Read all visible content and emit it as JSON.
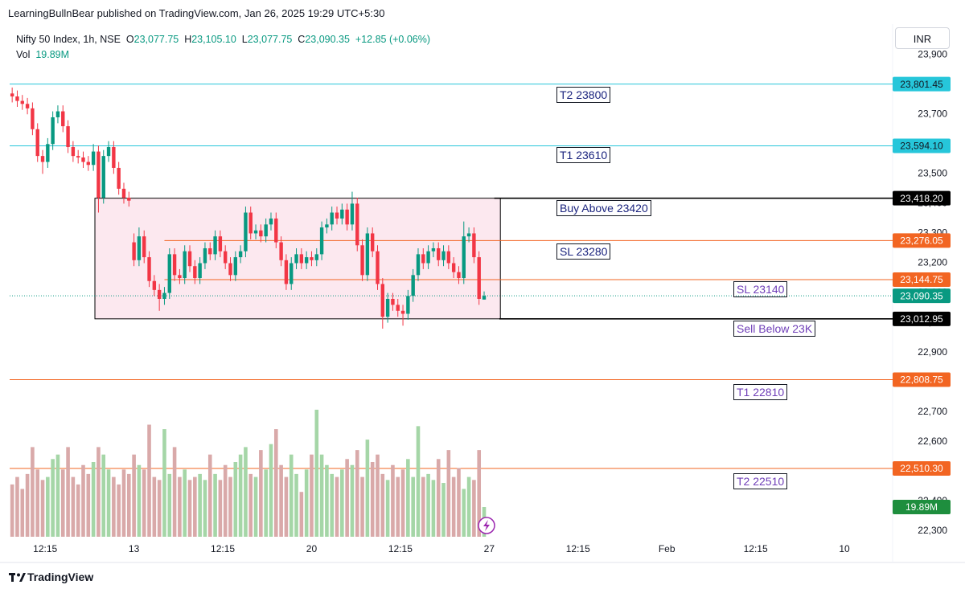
{
  "header": {
    "published": "LearningBullnBear published on TradingView.com, Jan 26, 2025 19:29 UTC+5:30"
  },
  "legend": {
    "symbol": "Nifty 50 Index, 1h, NSE",
    "o": "O",
    "open": "23,077.75",
    "h": "H",
    "high": "23,105.10",
    "l": "L",
    "low": "23,077.75",
    "c": "C",
    "close": "23,090.35",
    "change": "+12.85 (+0.06%)",
    "vol": "Vol",
    "volume": "19.89M"
  },
  "currency": "INR",
  "brand": "TradingView",
  "chart_data": {
    "type": "candlestick",
    "x": [
      0,
      1,
      2,
      3,
      4,
      5,
      6,
      7,
      8,
      9,
      10,
      11,
      12,
      13,
      14,
      15,
      16,
      17,
      18,
      19,
      20,
      21,
      22,
      23,
      24,
      25,
      26,
      27,
      28,
      29,
      30,
      31,
      32,
      33,
      34,
      35,
      36,
      37,
      38,
      39,
      40,
      41,
      42,
      43,
      44,
      45,
      46,
      47,
      48,
      49,
      50,
      51,
      52,
      53,
      54,
      55,
      56,
      57,
      58,
      59,
      60,
      61,
      62,
      63,
      64,
      65,
      66,
      67,
      68,
      69,
      70,
      71,
      72,
      73,
      74,
      75,
      76,
      77,
      78,
      79,
      80,
      81,
      82,
      83,
      84,
      85,
      86,
      87,
      88,
      89,
      90,
      91,
      92,
      93
    ],
    "open": [
      23770,
      23760,
      23745,
      23735,
      23720,
      23650,
      23560,
      23540,
      23600,
      23690,
      23710,
      23660,
      23590,
      23560,
      23555,
      23540,
      23530,
      23575,
      23420,
      23560,
      23590,
      23520,
      23450,
      23420,
      23270,
      23210,
      23290,
      23220,
      23140,
      23110,
      23080,
      23100,
      23230,
      23160,
      23150,
      23240,
      23190,
      23150,
      23200,
      23250,
      23230,
      23290,
      23240,
      23200,
      23160,
      23220,
      23240,
      23370,
      23300,
      23310,
      23290,
      23330,
      23350,
      23270,
      23210,
      23130,
      23200,
      23230,
      23200,
      23220,
      23210,
      23230,
      23320,
      23330,
      23370,
      23350,
      23380,
      23330,
      23400,
      23260,
      23160,
      23300,
      23240,
      23130,
      23020,
      23080,
      23060,
      23040,
      23030,
      23090,
      23160,
      23230,
      23200,
      23240,
      23250,
      23210,
      23240,
      23200,
      23170,
      23150,
      23290,
      23300,
      23220,
      23077.75
    ],
    "high": [
      23790,
      23780,
      23765,
      23755,
      23740,
      23670,
      23580,
      23620,
      23710,
      23730,
      23730,
      23680,
      23610,
      23580,
      23575,
      23560,
      23600,
      23595,
      23580,
      23610,
      23610,
      23540,
      23470,
      23440,
      23300,
      23320,
      23310,
      23240,
      23160,
      23130,
      23120,
      23250,
      23250,
      23180,
      23260,
      23260,
      23210,
      23220,
      23270,
      23270,
      23310,
      23310,
      23260,
      23220,
      23240,
      23260,
      23390,
      23390,
      23330,
      23330,
      23350,
      23370,
      23370,
      23290,
      23230,
      23220,
      23250,
      23250,
      23240,
      23240,
      23250,
      23340,
      23350,
      23390,
      23390,
      23400,
      23400,
      23440,
      23420,
      23280,
      23320,
      23320,
      23260,
      23150,
      23100,
      23100,
      23080,
      23060,
      23110,
      23180,
      23250,
      23250,
      23260,
      23270,
      23270,
      23260,
      23260,
      23220,
      23190,
      23340,
      23320,
      23320,
      23240,
      23105.1
    ],
    "low": [
      23740,
      23725,
      23715,
      23700,
      23630,
      23540,
      23500,
      23520,
      23580,
      23670,
      23640,
      23570,
      23540,
      23535,
      23520,
      23510,
      23510,
      23370,
      23400,
      23540,
      23500,
      23430,
      23400,
      23390,
      23190,
      23190,
      23200,
      23120,
      23090,
      23040,
      23060,
      23080,
      23140,
      23130,
      23130,
      23170,
      23130,
      23130,
      23180,
      23210,
      23210,
      23220,
      23180,
      23140,
      23140,
      23200,
      23220,
      23280,
      23280,
      23270,
      23270,
      23310,
      23250,
      23190,
      23110,
      23110,
      23180,
      23180,
      23180,
      23190,
      23190,
      23210,
      23300,
      23310,
      23330,
      23330,
      23310,
      23310,
      23240,
      23140,
      23140,
      23220,
      23110,
      22980,
      23000,
      23040,
      23020,
      22990,
      23010,
      23070,
      23140,
      23180,
      23180,
      23220,
      23190,
      23190,
      23180,
      23150,
      23130,
      23130,
      23270,
      23200,
      23060,
      23077.75
    ],
    "close": [
      23760,
      23745,
      23735,
      23720,
      23650,
      23560,
      23540,
      23600,
      23690,
      23710,
      23660,
      23590,
      23560,
      23555,
      23540,
      23530,
      23575,
      23420,
      23560,
      23590,
      23520,
      23450,
      23420,
      23410,
      23210,
      23290,
      23220,
      23140,
      23110,
      23080,
      23100,
      23230,
      23160,
      23150,
      23240,
      23190,
      23150,
      23200,
      23250,
      23230,
      23290,
      23240,
      23200,
      23160,
      23220,
      23240,
      23370,
      23300,
      23310,
      23290,
      23330,
      23350,
      23270,
      23210,
      23130,
      23200,
      23230,
      23200,
      23220,
      23210,
      23230,
      23320,
      23330,
      23370,
      23350,
      23380,
      23330,
      23400,
      23260,
      23160,
      23300,
      23240,
      23130,
      23020,
      23080,
      23060,
      23040,
      23030,
      23090,
      23160,
      23230,
      23200,
      23240,
      23250,
      23210,
      23240,
      23200,
      23170,
      23150,
      23290,
      23300,
      23220,
      23080,
      23090.35
    ],
    "volume": [
      35,
      40,
      32,
      42,
      60,
      45,
      38,
      40,
      52,
      55,
      45,
      60,
      40,
      35,
      48,
      42,
      50,
      60,
      55,
      45,
      40,
      35,
      45,
      42,
      55,
      48,
      45,
      75,
      40,
      38,
      72,
      42,
      60,
      40,
      45,
      38,
      40,
      42,
      38,
      55,
      42,
      38,
      48,
      40,
      50,
      55,
      60,
      42,
      40,
      58,
      45,
      62,
      72,
      48,
      40,
      55,
      42,
      30,
      45,
      55,
      85,
      55,
      48,
      42,
      40,
      45,
      52,
      48,
      58,
      40,
      65,
      50,
      55,
      42,
      38,
      48,
      40,
      45,
      52,
      40,
      74,
      40,
      42,
      38,
      52,
      36,
      58,
      40,
      46,
      32,
      40,
      38,
      58,
      19.89
    ],
    "up_color": "#089981",
    "down_color": "#f23645",
    "volume_up_color": "#a5d6a7",
    "volume_down_color": "#d9a9a9",
    "xlim": [
      -0.5,
      173.5
    ],
    "xticks": [
      {
        "value": 6.5,
        "label": "12:15"
      },
      {
        "value": 24,
        "label": "13"
      },
      {
        "value": 41.5,
        "label": "12:15"
      },
      {
        "value": 59,
        "label": "20"
      },
      {
        "value": 76.5,
        "label": "12:15"
      },
      {
        "value": 94,
        "label": "27"
      },
      {
        "value": 111.5,
        "label": "12:15"
      },
      {
        "value": 129,
        "label": "Feb"
      },
      {
        "value": 146.5,
        "label": "12:15"
      },
      {
        "value": 164,
        "label": "10"
      }
    ],
    "ylim": [
      22281,
      24003
    ],
    "yticks": [
      {
        "value": 22300,
        "label": "22,300"
      },
      {
        "value": 22400,
        "label": "22,400"
      },
      {
        "value": 22500,
        "label": "22,500"
      },
      {
        "value": 22600,
        "label": "22,600"
      },
      {
        "value": 22700,
        "label": "22,700"
      },
      {
        "value": 22800,
        "label": "22,800"
      },
      {
        "value": 22900,
        "label": "22,900"
      },
      {
        "value": 23000,
        "label": "23,000"
      },
      {
        "value": 23100,
        "label": "23,100"
      },
      {
        "value": 23200,
        "label": "23,200"
      },
      {
        "value": 23300,
        "label": "23,300"
      },
      {
        "value": 23400,
        "label": "23,400"
      },
      {
        "value": 23500,
        "label": "23,500"
      },
      {
        "value": 23600,
        "label": "23,600"
      },
      {
        "value": 23700,
        "label": "23,700"
      },
      {
        "value": 23800,
        "label": "23,800"
      },
      {
        "value": 23900,
        "label": "23,900"
      }
    ],
    "y2lim": [
      0,
      343
    ],
    "grid": false,
    "box": {
      "x": [
        16.3,
        96.2
      ],
      "y": [
        23012.95,
        23418.2
      ],
      "fill": "#fce4ec",
      "stroke": "#000000"
    },
    "levels": [
      {
        "value": 23801.45,
        "label": "23,801.45",
        "color": "#26c6da",
        "text_color": "#131722"
      },
      {
        "value": 23594.1,
        "label": "23,594.10",
        "color": "#26c6da",
        "text_color": "#131722"
      },
      {
        "value": 23418.2,
        "label": "23,418.20",
        "color": "#000000",
        "text_color": "#ffffff",
        "from": 95
      },
      {
        "value": 23276.05,
        "label": "23,276.05",
        "color": "#f26522",
        "text_color": "#ffffff",
        "from": 30
      },
      {
        "value": 23144.75,
        "label": "23,144.75",
        "color": "#f26522",
        "text_color": "#ffffff",
        "from": 30
      },
      {
        "value": 23012.95,
        "label": "23,012.95",
        "color": "#000000",
        "text_color": "#ffffff",
        "from": 96
      },
      {
        "value": 22808.75,
        "label": "22,808.75",
        "color": "#f26522",
        "text_color": "#ffffff"
      },
      {
        "value": 22510.3,
        "label": "22,510.30",
        "color": "#f26522",
        "text_color": "#ffffff"
      }
    ],
    "last_price": {
      "value": 23090.35,
      "label": "23,090.35",
      "color": "#089981"
    },
    "last_volume": {
      "value": 19.89,
      "label": "19.89M",
      "color": "#1e8e3e"
    },
    "annotations": [
      {
        "text": "T2 23800",
        "color": "#1a237e"
      },
      {
        "text": "T1 23610",
        "color": "#1a237e"
      },
      {
        "text": "Buy Above 23420",
        "color": "#1a237e"
      },
      {
        "text": "SL 23280",
        "color": "#1a237e"
      },
      {
        "text": "SL 23140",
        "color": "#6f3fb8"
      },
      {
        "text": "Sell Below 23K",
        "color": "#6f3fb8"
      },
      {
        "text": "T1 22810",
        "color": "#6f3fb8"
      },
      {
        "text": "T2 22510",
        "color": "#6f3fb8"
      }
    ]
  }
}
